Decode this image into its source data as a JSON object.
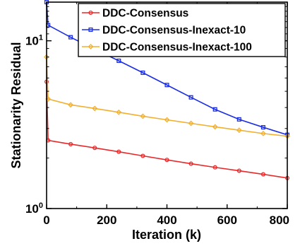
{
  "chart_data": {
    "type": "line",
    "xlabel": "Iteration (k)",
    "ylabel": "Stationarity Residual",
    "x_scale": "linear",
    "y_scale": "log",
    "xlim": [
      0,
      800
    ],
    "ylim": [
      1,
      17
    ],
    "xticks": [
      {
        "value": 0,
        "label": "0"
      },
      {
        "value": 200,
        "label": "200"
      },
      {
        "value": 400,
        "label": "400"
      },
      {
        "value": 600,
        "label": "600"
      },
      {
        "value": 800,
        "label": "800"
      }
    ],
    "yticks": [
      {
        "value": 1,
        "base": "10",
        "exp": "0"
      },
      {
        "value": 10,
        "base": "10",
        "exp": "1"
      }
    ],
    "grid": false,
    "legend_position": "top-right",
    "series": [
      {
        "name": "DDC-Consensus",
        "color": "#e8292a",
        "marker": "circle",
        "x": [
          0,
          5,
          80,
          160,
          240,
          320,
          400,
          480,
          560,
          640,
          720,
          800
        ],
        "y": [
          5.7,
          2.55,
          2.42,
          2.3,
          2.18,
          2.06,
          1.95,
          1.85,
          1.76,
          1.68,
          1.6,
          1.52
        ]
      },
      {
        "name": "DDC-Consensus-Inexact-10",
        "color": "#1b2ee0",
        "marker": "square",
        "x": [
          0,
          5,
          80,
          160,
          240,
          320,
          400,
          480,
          560,
          640,
          720,
          800
        ],
        "y": [
          17,
          12.4,
          10.5,
          8.9,
          7.6,
          6.45,
          5.45,
          4.6,
          3.9,
          3.4,
          3.05,
          2.75
        ]
      },
      {
        "name": "DDC-Consensus-Inexact-100",
        "color": "#f2b02e",
        "marker": "diamond",
        "x": [
          0,
          5,
          80,
          160,
          240,
          320,
          400,
          480,
          560,
          640,
          720,
          800
        ],
        "y": [
          8.0,
          4.5,
          4.15,
          3.95,
          3.75,
          3.55,
          3.38,
          3.22,
          3.07,
          2.93,
          2.8,
          2.7
        ]
      }
    ]
  }
}
